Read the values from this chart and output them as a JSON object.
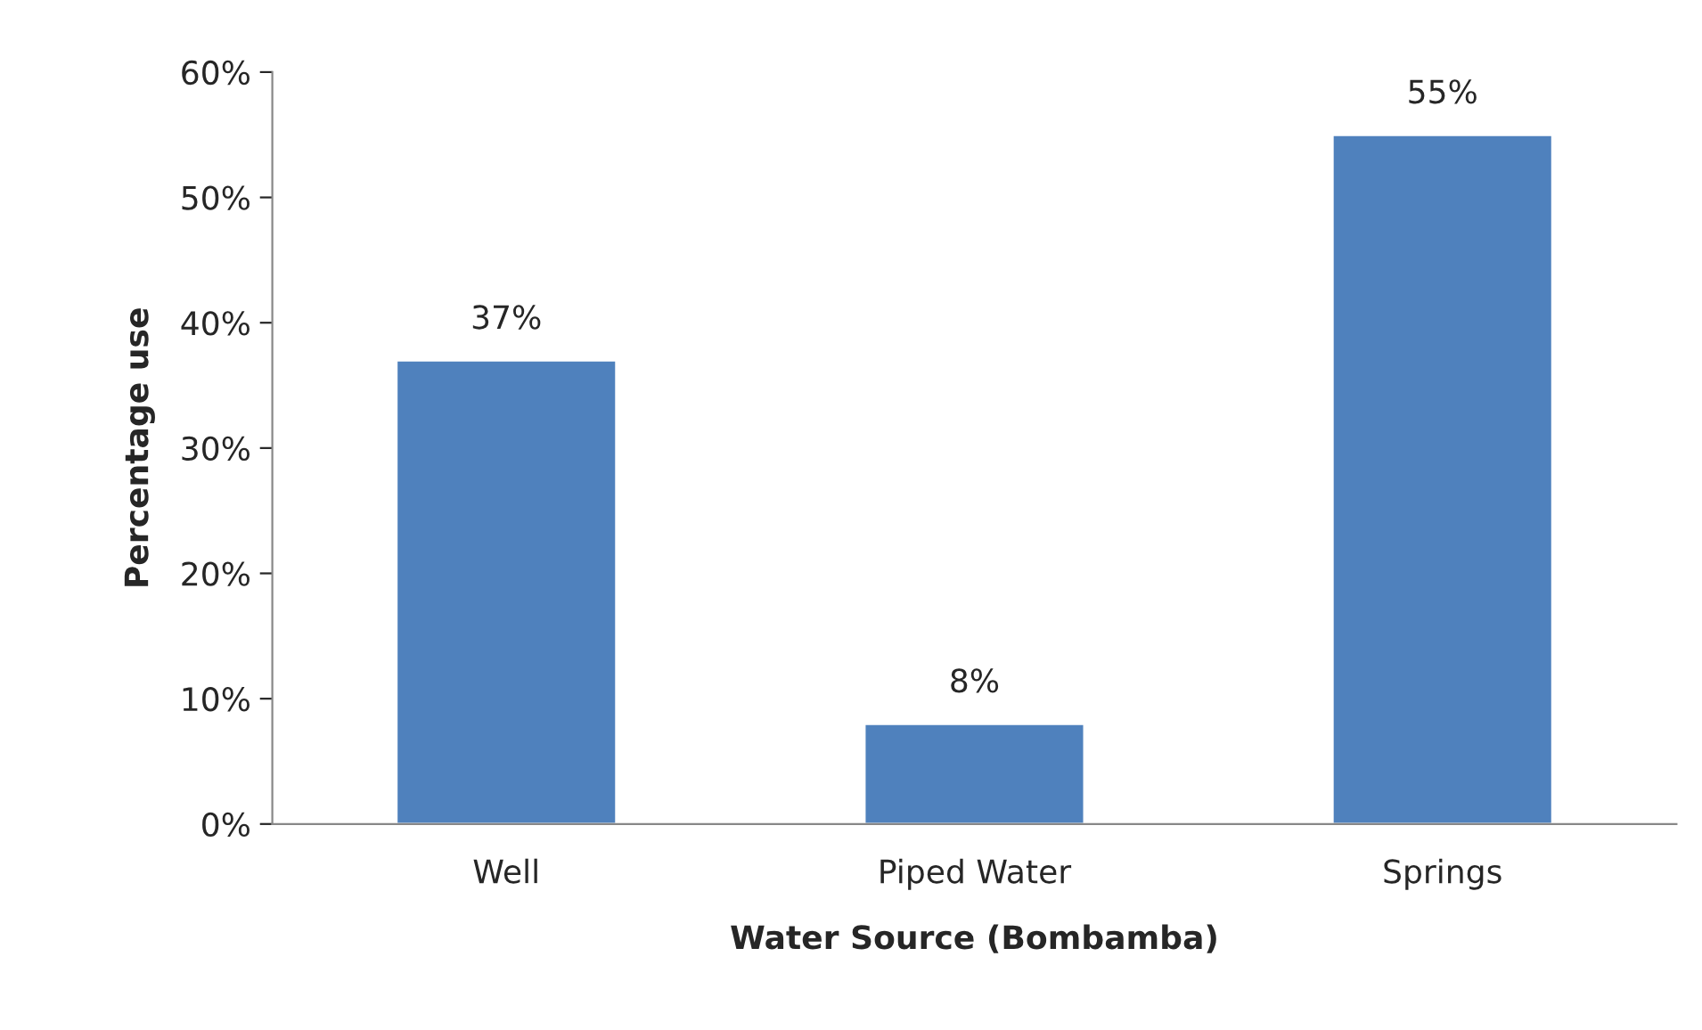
{
  "chart_data": {
    "type": "bar",
    "xlabel": "Water Source (Bombamba)",
    "ylabel": "Percentage use",
    "categories": [
      "Well",
      "Piped Water",
      "Springs"
    ],
    "values": [
      37,
      8,
      55
    ],
    "color": "#4f81bd",
    "value_labels": [
      "37%",
      "8%",
      "55%"
    ],
    "ylim": [
      0,
      60
    ],
    "yticks": [
      {
        "value": 0,
        "label": "0%"
      },
      {
        "value": 10,
        "label": "10%"
      },
      {
        "value": 20,
        "label": "20%"
      },
      {
        "value": 30,
        "label": "30%"
      },
      {
        "value": 40,
        "label": "40%"
      },
      {
        "value": 50,
        "label": "50%"
      },
      {
        "value": 60,
        "label": "60%"
      }
    ],
    "grid": false,
    "legend": false
  }
}
